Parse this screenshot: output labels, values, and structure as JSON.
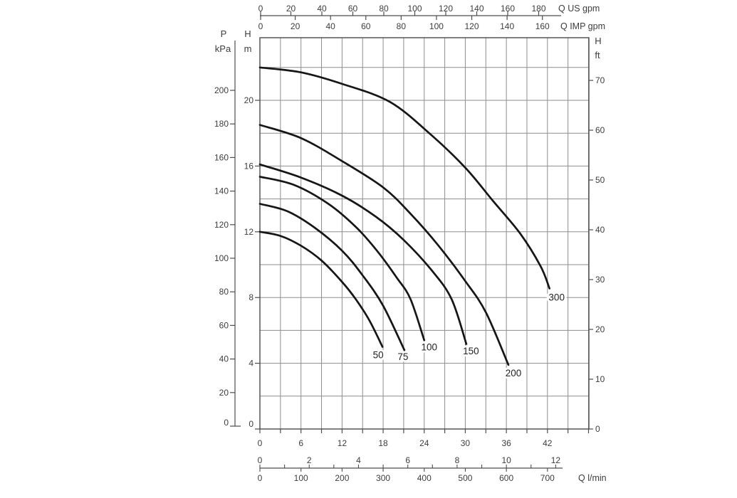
{
  "chart_data": {
    "type": "line",
    "description": "Pump performance curves: head vs flow for six pump models",
    "grid": true,
    "legend_position": "none",
    "colors": {
      "curve": "#161616",
      "grid": "#8d8d8d",
      "frame": "#4a4a4a",
      "axis": "#4d4d4d",
      "text": "#3d3d3d",
      "background": "#ffffff"
    },
    "axes": {
      "top_us": {
        "unit": "Q US gpm",
        "ticks": [
          0,
          20,
          40,
          60,
          80,
          100,
          120,
          140,
          160,
          180
        ]
      },
      "top_imp": {
        "unit": "Q IMP gpm",
        "ticks": [
          0,
          20,
          40,
          60,
          80,
          100,
          120,
          140,
          160
        ]
      },
      "left_kpa": {
        "sym": "P",
        "unit": "kPa",
        "ticks": [
          0,
          20,
          40,
          60,
          80,
          100,
          120,
          140,
          160,
          180,
          200
        ]
      },
      "left_m": {
        "sym": "H",
        "unit": "m",
        "ticks": [
          0,
          4,
          8,
          12,
          16,
          20
        ],
        "range": [
          0,
          22
        ]
      },
      "right_ft": {
        "sym": "H",
        "unit": "ft",
        "ticks": [
          0,
          10,
          20,
          30,
          40,
          50,
          60,
          70
        ]
      },
      "bottom_m3h": {
        "unit": "",
        "ticks": [
          0,
          6,
          12,
          18,
          24,
          30,
          36,
          42
        ],
        "range": [
          0,
          48
        ]
      },
      "bottom_ls": {
        "unit": "",
        "ticks": [
          0,
          2,
          4,
          6,
          8,
          10,
          12
        ]
      },
      "bottom_lmin": {
        "unit": "Q l/min",
        "ticks": [
          0,
          100,
          200,
          300,
          400,
          500,
          600,
          700
        ]
      }
    },
    "series": [
      {
        "name": "50",
        "label_dx": -6,
        "label_dy": 16,
        "points": [
          [
            0,
            12.0
          ],
          [
            3,
            11.75
          ],
          [
            6,
            11.15
          ],
          [
            9,
            10.25
          ],
          [
            12,
            8.95
          ],
          [
            14,
            7.9
          ],
          [
            16,
            6.6
          ],
          [
            17.9,
            5.0
          ]
        ]
      },
      {
        "name": "75",
        "label_dx": -2,
        "label_dy": 14,
        "points": [
          [
            0,
            13.7
          ],
          [
            4,
            13.25
          ],
          [
            8,
            12.25
          ],
          [
            12,
            10.85
          ],
          [
            15,
            9.35
          ],
          [
            18,
            7.5
          ],
          [
            21.1,
            4.8
          ]
        ]
      },
      {
        "name": "100",
        "label_dx": 7,
        "label_dy": 14,
        "points": [
          [
            0,
            15.35
          ],
          [
            5,
            14.85
          ],
          [
            10,
            13.7
          ],
          [
            14,
            12.3
          ],
          [
            17,
            10.9
          ],
          [
            20,
            9.2
          ],
          [
            22,
            7.9
          ],
          [
            24,
            5.4
          ]
        ]
      },
      {
        "name": "150",
        "label_dx": 6,
        "label_dy": 13,
        "points": [
          [
            0,
            16.1
          ],
          [
            6,
            15.3
          ],
          [
            12,
            14.2
          ],
          [
            17,
            12.9
          ],
          [
            21,
            11.5
          ],
          [
            25,
            9.7
          ],
          [
            28,
            7.9
          ],
          [
            30.2,
            5.1
          ]
        ]
      },
      {
        "name": "200",
        "label_dx": 7,
        "label_dy": 16,
        "points": [
          [
            0,
            18.5
          ],
          [
            6,
            17.7
          ],
          [
            12,
            16.3
          ],
          [
            18,
            14.7
          ],
          [
            22,
            13.1
          ],
          [
            26,
            11.2
          ],
          [
            30,
            9.0
          ],
          [
            33,
            7.1
          ],
          [
            36.3,
            3.9
          ]
        ]
      },
      {
        "name": "300",
        "label_dx": 10,
        "label_dy": 17,
        "points": [
          [
            0,
            22.0
          ],
          [
            6,
            21.7
          ],
          [
            12,
            21.0
          ],
          [
            19,
            19.9
          ],
          [
            25,
            17.9
          ],
          [
            30,
            15.9
          ],
          [
            34,
            13.9
          ],
          [
            38,
            11.9
          ],
          [
            41,
            9.9
          ],
          [
            42.3,
            8.55
          ]
        ]
      }
    ]
  }
}
